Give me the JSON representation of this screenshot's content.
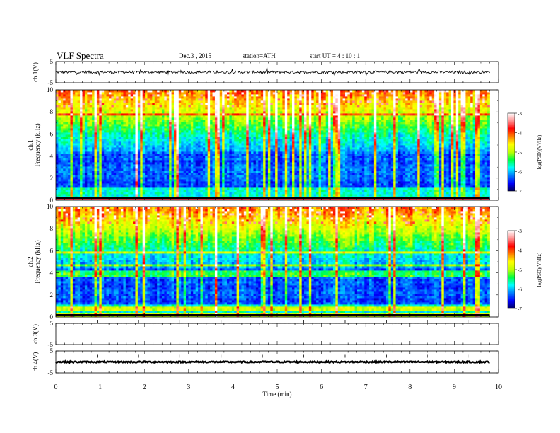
{
  "header": {
    "title": "VLF  Spectra",
    "date": "Dec.3  , 2015",
    "station": "station=ATH",
    "start": "start  UT  =   4  : 10 : 1"
  },
  "chart_data": [
    {
      "type": "line",
      "name": "ch1-timeseries",
      "ylabel": "ch.1(V)",
      "ylim": [
        -5,
        5
      ],
      "yticks": [
        "5",
        "-5"
      ],
      "baseline": 0,
      "noise_amplitude": 0.6
    },
    {
      "type": "heatmap",
      "name": "ch1-spectrogram",
      "ylabel": "ch.1\nFrequency  (kHz)",
      "ylabel_lines": [
        "ch.1",
        "Frequency  (kHz)"
      ],
      "ylim": [
        0,
        10
      ],
      "yticks": [
        "0",
        "2",
        "4",
        "6",
        "8",
        "10"
      ],
      "colorbar": {
        "label": "log(PSD)(V²/Hz)",
        "range": [
          -7,
          -3
        ],
        "ticks": [
          "-3",
          "-4",
          "-5",
          "-6",
          "-7"
        ],
        "colors": [
          "#000060",
          "#0000ff",
          "#0080ff",
          "#00ffff",
          "#00ff40",
          "#c0ff00",
          "#ffff00",
          "#ff8000",
          "#ff0000",
          "#ff9090",
          "#ffffff"
        ]
      }
    },
    {
      "type": "heatmap",
      "name": "ch2-spectrogram",
      "ylabel": "ch.2\nFrequency  (kHz)",
      "ylabel_lines": [
        "ch.2",
        "Frequency  (kHz)"
      ],
      "ylim": [
        0,
        10
      ],
      "yticks": [
        "0",
        "2",
        "4",
        "6",
        "8",
        "10"
      ],
      "colorbar": {
        "label": "log(PSD)(V²/Hz)",
        "range": [
          -7,
          -3
        ],
        "ticks": [
          "-3",
          "-4",
          "-5",
          "-6",
          "-7"
        ]
      }
    },
    {
      "type": "line",
      "name": "ch3-timeseries",
      "ylabel": "ch.3(V)",
      "ylim": [
        -5,
        5
      ],
      "yticks": [
        "5",
        "-5"
      ],
      "baseline": 5,
      "noise_amplitude": 0.05
    },
    {
      "type": "line",
      "name": "ch4-timeseries",
      "ylabel": "ch.4(V)",
      "ylim": [
        -5,
        5
      ],
      "yticks": [
        "5",
        "-5"
      ],
      "baseline": 0,
      "noise_amplitude": 0.3
    }
  ],
  "xaxis": {
    "label": "Time  (min)",
    "range": [
      0,
      10
    ],
    "ticks": [
      "0",
      "1",
      "2",
      "3",
      "4",
      "5",
      "6",
      "7",
      "8",
      "9",
      "10"
    ],
    "data_end": 9.8
  }
}
